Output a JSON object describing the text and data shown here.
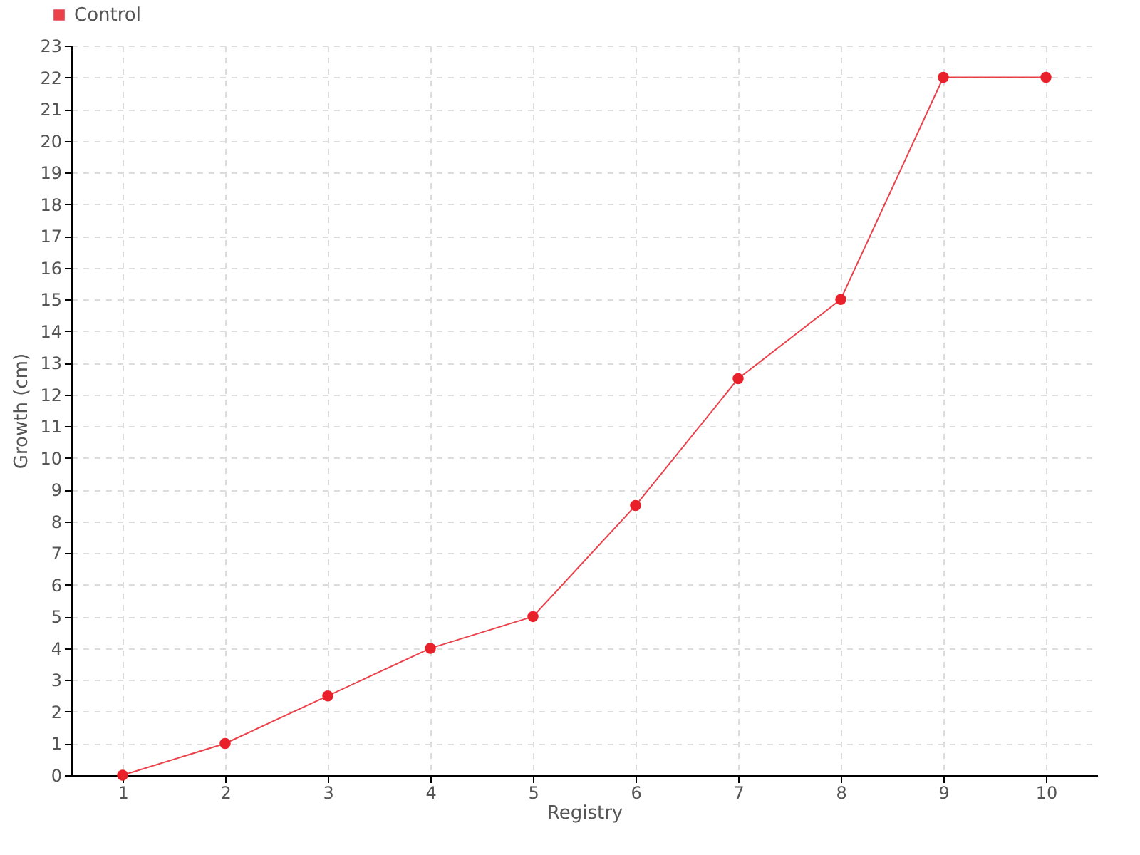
{
  "chart_data": {
    "type": "line",
    "xlabel": "Registry",
    "ylabel": "Growth (cm)",
    "categories": [
      "1",
      "2",
      "3",
      "4",
      "5",
      "6",
      "7",
      "8",
      "9",
      "10"
    ],
    "series": [
      {
        "name": "Control",
        "color": "#e8202a",
        "values": [
          0,
          1,
          2.5,
          4,
          5,
          8.5,
          12.5,
          15,
          22,
          22
        ]
      }
    ],
    "ylim": [
      0,
      23
    ],
    "yticks": [
      0,
      1,
      2,
      3,
      4,
      5,
      6,
      7,
      8,
      9,
      10,
      11,
      12,
      13,
      14,
      15,
      16,
      17,
      18,
      19,
      20,
      21,
      22,
      23
    ],
    "grid": true,
    "legend": "top left",
    "marker": "circle",
    "line_style": "solid"
  }
}
